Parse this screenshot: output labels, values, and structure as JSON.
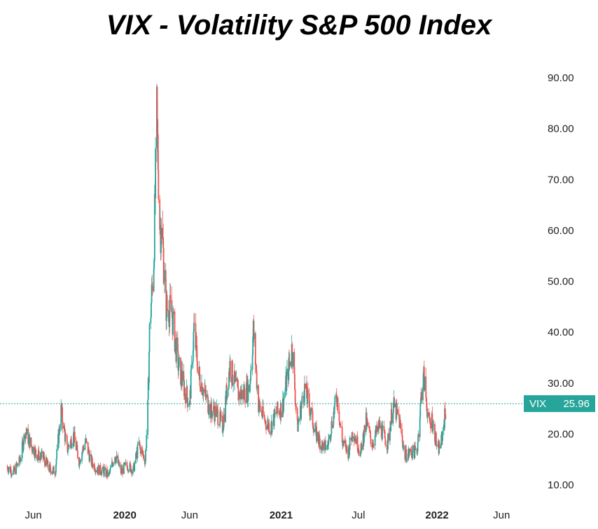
{
  "chart_data": {
    "type": "candlestick",
    "title": "VIX - Volatility S&P 500 Index",
    "symbol": "VIX",
    "last_value": "25.96",
    "ylim": [
      8,
      93
    ],
    "y_ticks": [
      "10.00",
      "20.00",
      "30.00",
      "40.00",
      "50.00",
      "60.00",
      "70.00",
      "80.00",
      "90.00"
    ],
    "x_ticks": [
      {
        "label": "Jun",
        "date": "2019-06-01",
        "bold": false
      },
      {
        "label": "2020",
        "date": "2020-01-01",
        "bold": true
      },
      {
        "label": "Jun",
        "date": "2020-06-01",
        "bold": false
      },
      {
        "label": "2021",
        "date": "2021-01-01",
        "bold": true
      },
      {
        "label": "Jul",
        "date": "2021-07-01",
        "bold": false
      },
      {
        "label": "2022",
        "date": "2022-01-01",
        "bold": true
      },
      {
        "label": "Jun",
        "date": "2022-06-01",
        "bold": false
      }
    ],
    "x_range": [
      "2019-03-15",
      "2022-07-10"
    ],
    "grid": false,
    "colors": {
      "up": "#26a69a",
      "down": "#ef5350",
      "last_price": "#26a69a"
    },
    "ohlc_daily_closes_sampled": [
      [
        "2019-04-01",
        13.5
      ],
      [
        "2019-04-15",
        12.4
      ],
      [
        "2019-05-01",
        14.8
      ],
      [
        "2019-05-13",
        20.6
      ],
      [
        "2019-05-28",
        17.5
      ],
      [
        "2019-06-10",
        15.9
      ],
      [
        "2019-06-24",
        15.3
      ],
      [
        "2019-07-08",
        13.2
      ],
      [
        "2019-07-22",
        12.6
      ],
      [
        "2019-08-05",
        24.6
      ],
      [
        "2019-08-19",
        16.9
      ],
      [
        "2019-09-03",
        19.7
      ],
      [
        "2019-09-16",
        14.7
      ],
      [
        "2019-10-01",
        18.6
      ],
      [
        "2019-10-14",
        14.6
      ],
      [
        "2019-10-28",
        13.1
      ],
      [
        "2019-11-11",
        12.7
      ],
      [
        "2019-11-25",
        11.9
      ],
      [
        "2019-12-09",
        15.9
      ],
      [
        "2019-12-23",
        12.6
      ],
      [
        "2020-01-06",
        13.9
      ],
      [
        "2020-01-21",
        12.9
      ],
      [
        "2020-02-03",
        17.9
      ],
      [
        "2020-02-18",
        14.8
      ],
      [
        "2020-02-24",
        25.0
      ],
      [
        "2020-02-28",
        40.1
      ],
      [
        "2020-03-09",
        54.5
      ],
      [
        "2020-03-16",
        82.7
      ],
      [
        "2020-03-23",
        61.6
      ],
      [
        "2020-03-30",
        57.1
      ],
      [
        "2020-04-06",
        45.2
      ],
      [
        "2020-04-20",
        43.8
      ],
      [
        "2020-05-04",
        34.1
      ],
      [
        "2020-05-18",
        29.3
      ],
      [
        "2020-06-01",
        25.8
      ],
      [
        "2020-06-11",
        40.8
      ],
      [
        "2020-06-22",
        31.8
      ],
      [
        "2020-07-06",
        27.9
      ],
      [
        "2020-07-20",
        24.5
      ],
      [
        "2020-08-03",
        24.3
      ],
      [
        "2020-08-17",
        21.3
      ],
      [
        "2020-09-03",
        33.6
      ],
      [
        "2020-09-21",
        27.8
      ],
      [
        "2020-10-05",
        27.9
      ],
      [
        "2020-10-19",
        29.2
      ],
      [
        "2020-10-28",
        40.3
      ],
      [
        "2020-11-09",
        25.8
      ],
      [
        "2020-11-23",
        22.7
      ],
      [
        "2020-12-07",
        21.3
      ],
      [
        "2020-12-21",
        24.2
      ],
      [
        "2021-01-04",
        25.3
      ],
      [
        "2021-01-27",
        37.2
      ],
      [
        "2021-02-08",
        21.2
      ],
      [
        "2021-02-25",
        28.9
      ],
      [
        "2021-03-08",
        25.5
      ],
      [
        "2021-03-22",
        20.3
      ],
      [
        "2021-04-05",
        17.9
      ],
      [
        "2021-04-19",
        17.3
      ],
      [
        "2021-05-12",
        27.6
      ],
      [
        "2021-05-24",
        18.4
      ],
      [
        "2021-06-07",
        16.4
      ],
      [
        "2021-06-18",
        20.7
      ],
      [
        "2021-07-06",
        16.4
      ],
      [
        "2021-07-19",
        22.5
      ],
      [
        "2021-08-02",
        18.0
      ],
      [
        "2021-08-19",
        21.6
      ],
      [
        "2021-09-07",
        18.0
      ],
      [
        "2021-09-20",
        25.7
      ],
      [
        "2021-10-04",
        22.9
      ],
      [
        "2021-10-18",
        15.7
      ],
      [
        "2021-11-01",
        16.4
      ],
      [
        "2021-11-15",
        16.5
      ],
      [
        "2021-11-26",
        28.6
      ],
      [
        "2021-12-01",
        31.1
      ],
      [
        "2021-12-13",
        21.9
      ],
      [
        "2021-12-20",
        22.9
      ],
      [
        "2022-01-03",
        16.6
      ],
      [
        "2022-01-11",
        18.4
      ],
      [
        "2022-01-18",
        22.8
      ],
      [
        "2022-01-24",
        25.96
      ]
    ]
  }
}
